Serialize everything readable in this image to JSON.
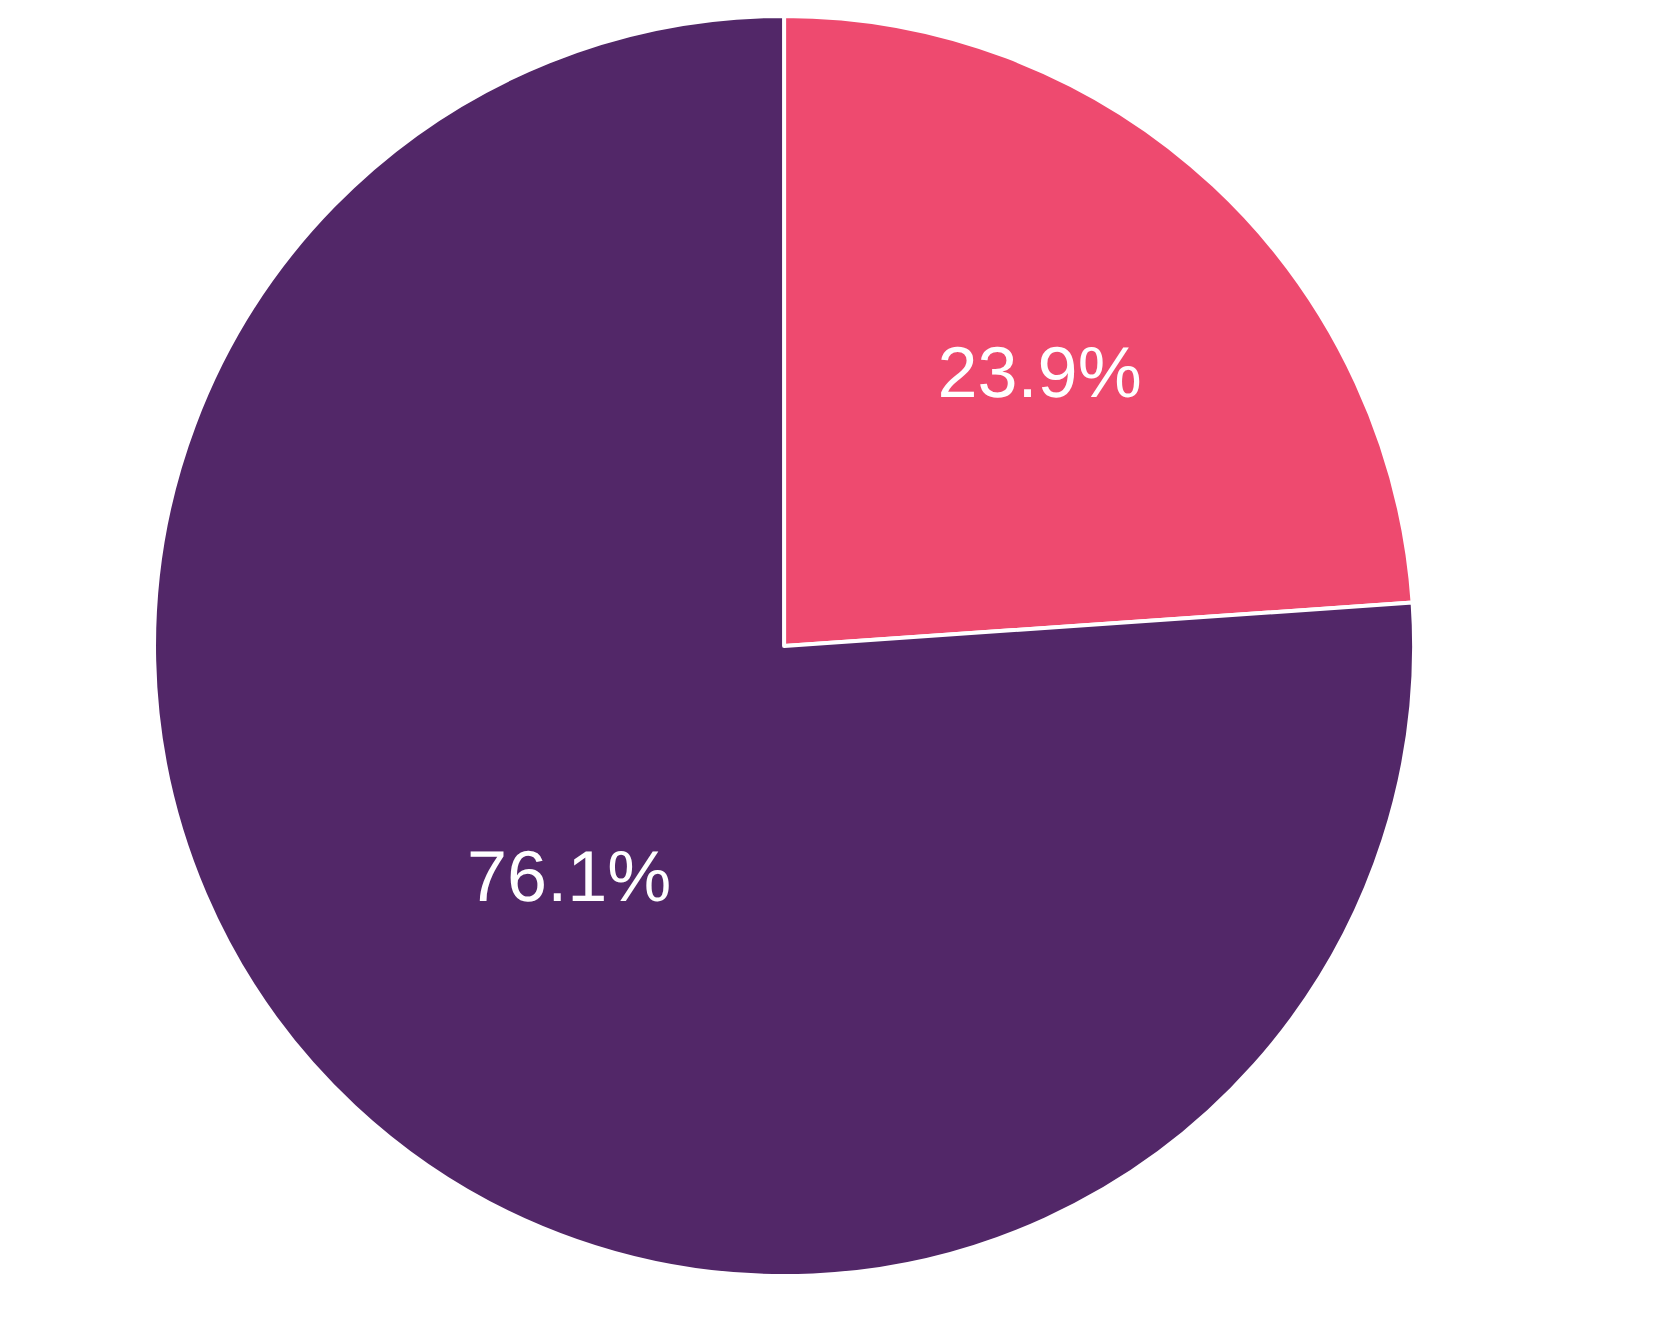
{
  "chart_data": {
    "type": "pie",
    "categories": [
      null,
      null
    ],
    "values": [
      23.9,
      76.1
    ],
    "colors": [
      "#ee4a6f",
      "#522768"
    ],
    "value_labels": [
      "23.9%",
      "76.1%"
    ],
    "legend": false
  }
}
